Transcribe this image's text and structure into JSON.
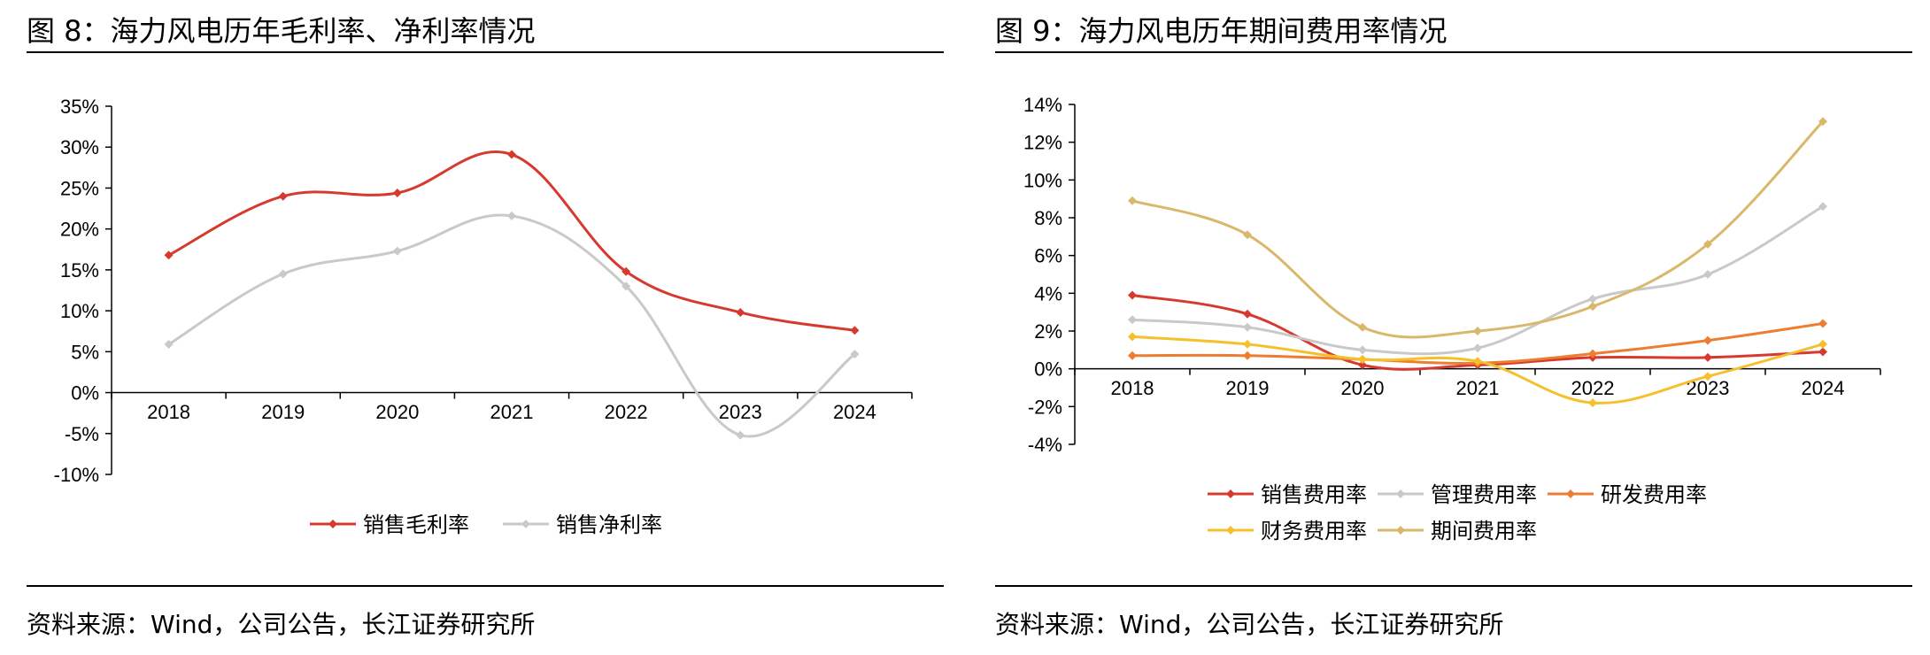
{
  "colors": {
    "red": "#d63a2f",
    "gray": "#c9c9c9",
    "orange": "#ed7d31",
    "yellow": "#f5c02b",
    "tan": "#d9b86c",
    "axis": "#000000"
  },
  "left": {
    "figure_title": "图 8：海力风电历年毛利率、净利率情况",
    "source": "资料来源：Wind，公司公告，长江证券研究所"
  },
  "right": {
    "figure_title": "图 9：海力风电历年期间费用率情况",
    "source": "资料来源：Wind，公司公告，长江证券研究所"
  },
  "chart_data": [
    {
      "type": "line",
      "smooth": true,
      "categories": [
        "2018",
        "2019",
        "2020",
        "2021",
        "2022",
        "2023",
        "2024"
      ],
      "ylim": [
        -10,
        35
      ],
      "yticks": [
        -10,
        -5,
        0,
        5,
        10,
        15,
        20,
        25,
        30,
        35
      ],
      "ytick_labels": [
        "-10%",
        "-5%",
        "0%",
        "5%",
        "10%",
        "15%",
        "20%",
        "25%",
        "30%",
        "35%"
      ],
      "legend_position": "bottom",
      "grid": false,
      "series": [
        {
          "name": "销售毛利率",
          "color": "#d63a2f",
          "values": [
            16.8,
            24.0,
            24.4,
            29.1,
            14.8,
            9.8,
            7.6
          ]
        },
        {
          "name": "销售净利率",
          "color": "#c9c9c9",
          "values": [
            5.9,
            14.5,
            17.3,
            21.6,
            13.0,
            -5.2,
            4.7
          ]
        }
      ]
    },
    {
      "type": "line",
      "smooth": true,
      "categories": [
        "2018",
        "2019",
        "2020",
        "2021",
        "2022",
        "2023",
        "2024"
      ],
      "ylim": [
        -4,
        14
      ],
      "yticks": [
        -4,
        -2,
        0,
        2,
        4,
        6,
        8,
        10,
        12,
        14
      ],
      "ytick_labels": [
        "-4%",
        "-2%",
        "0%",
        "2%",
        "4%",
        "6%",
        "8%",
        "10%",
        "12%",
        "14%"
      ],
      "legend_position": "bottom",
      "grid": false,
      "series": [
        {
          "name": "销售费用率",
          "color": "#d63a2f",
          "values": [
            3.9,
            2.9,
            0.2,
            0.2,
            0.6,
            0.6,
            0.9
          ]
        },
        {
          "name": "管理费用率",
          "color": "#c9c9c9",
          "values": [
            2.6,
            2.2,
            1.0,
            1.1,
            3.7,
            5.0,
            8.6
          ]
        },
        {
          "name": "研发费用率",
          "color": "#ed7d31",
          "values": [
            0.7,
            0.7,
            0.5,
            0.3,
            0.8,
            1.5,
            2.4
          ]
        },
        {
          "name": "财务费用率",
          "color": "#f5c02b",
          "values": [
            1.7,
            1.3,
            0.5,
            0.4,
            -1.8,
            -0.4,
            1.3
          ]
        },
        {
          "name": "期间费用率",
          "color": "#d9b86c",
          "values": [
            8.9,
            7.1,
            2.2,
            2.0,
            3.3,
            6.6,
            13.1
          ]
        }
      ]
    }
  ]
}
